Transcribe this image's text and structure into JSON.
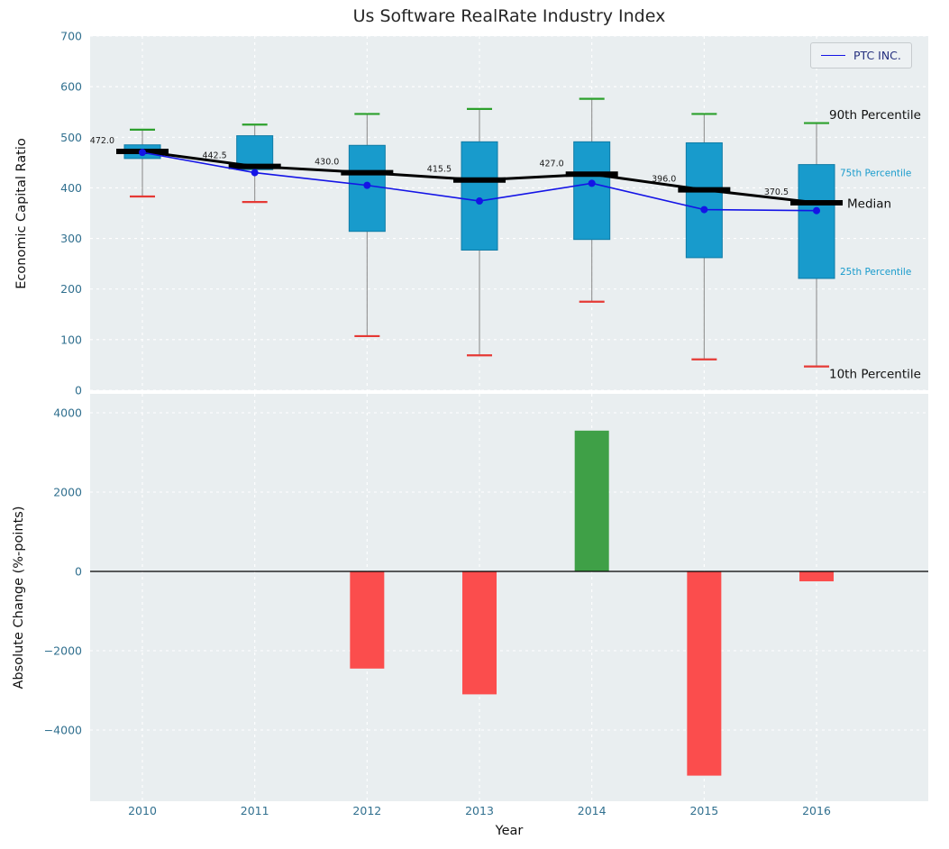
{
  "title": "Us Software RealRate Industry Index",
  "colors": {
    "panel": "#e9eef0",
    "box": "#189bcc",
    "box_edge": "#0f7ba6",
    "p90": "#2ca02c",
    "p10": "#e53935",
    "ptc": "#1414e6",
    "median": "#000000",
    "tick": "#31708f",
    "positive_bar": "#3fa047",
    "negative_bar": "#fb4d4d"
  },
  "legend": {
    "label": "PTC INC."
  },
  "chart_data": [
    {
      "type": "boxplot",
      "title": "Us Software RealRate Industry Index",
      "ylabel": "Economic Capital Ratio",
      "ylim": [
        0,
        700
      ],
      "yticks": [
        700,
        600,
        500,
        400,
        300,
        200,
        100,
        0
      ],
      "grid": true,
      "legend_position": "upper right",
      "categories": [
        "2010",
        "2011",
        "2012",
        "2013",
        "2014",
        "2015",
        "2016"
      ],
      "boxes": [
        {
          "year": "2010",
          "p10": 383,
          "p25": 458,
          "median": 472.0,
          "p75": 485,
          "p90": 515
        },
        {
          "year": "2011",
          "p10": 372,
          "p25": 436,
          "median": 442.5,
          "p75": 503,
          "p90": 525
        },
        {
          "year": "2012",
          "p10": 107,
          "p25": 314,
          "median": 430.0,
          "p75": 484,
          "p90": 546
        },
        {
          "year": "2013",
          "p10": 69,
          "p25": 277,
          "median": 415.5,
          "p75": 491,
          "p90": 556
        },
        {
          "year": "2014",
          "p10": 175,
          "p25": 298,
          "median": 427.0,
          "p75": 491,
          "p90": 576
        },
        {
          "year": "2015",
          "p10": 61,
          "p25": 262,
          "median": 396.0,
          "p75": 489,
          "p90": 546
        },
        {
          "year": "2016",
          "p10": 47,
          "p25": 221,
          "median": 370.5,
          "p75": 446,
          "p90": 528
        }
      ],
      "median_labels": [
        "472.0",
        "442.5",
        "430.0",
        "415.5",
        "427.0",
        "396.0",
        "370.5"
      ],
      "series": [
        {
          "name": "PTC INC.",
          "values": [
            470,
            430,
            405,
            374,
            409,
            357,
            355
          ]
        }
      ],
      "percentile_annotations": [
        {
          "label": "90th Percentile",
          "value": 545,
          "style": "large",
          "x": 920
        },
        {
          "label": "75th Percentile",
          "value": 432,
          "style": "small",
          "x": 932
        },
        {
          "label": "Median",
          "value": 370,
          "style": "large",
          "x": 940
        },
        {
          "label": "25th Percentile",
          "value": 237,
          "style": "small",
          "x": 932
        },
        {
          "label": "10th Percentile",
          "value": 33,
          "style": "large",
          "x": 920
        }
      ]
    },
    {
      "type": "bar",
      "ylabel": "Absolute Change (%-points)",
      "xlabel": "Year",
      "yticks": [
        4000,
        2000,
        0,
        -2000,
        -4000
      ],
      "grid": true,
      "categories": [
        "2010",
        "2011",
        "2012",
        "2013",
        "2014",
        "2015",
        "2016"
      ],
      "values": [
        null,
        null,
        -2450,
        -3100,
        3550,
        -5150,
        -250
      ]
    }
  ]
}
